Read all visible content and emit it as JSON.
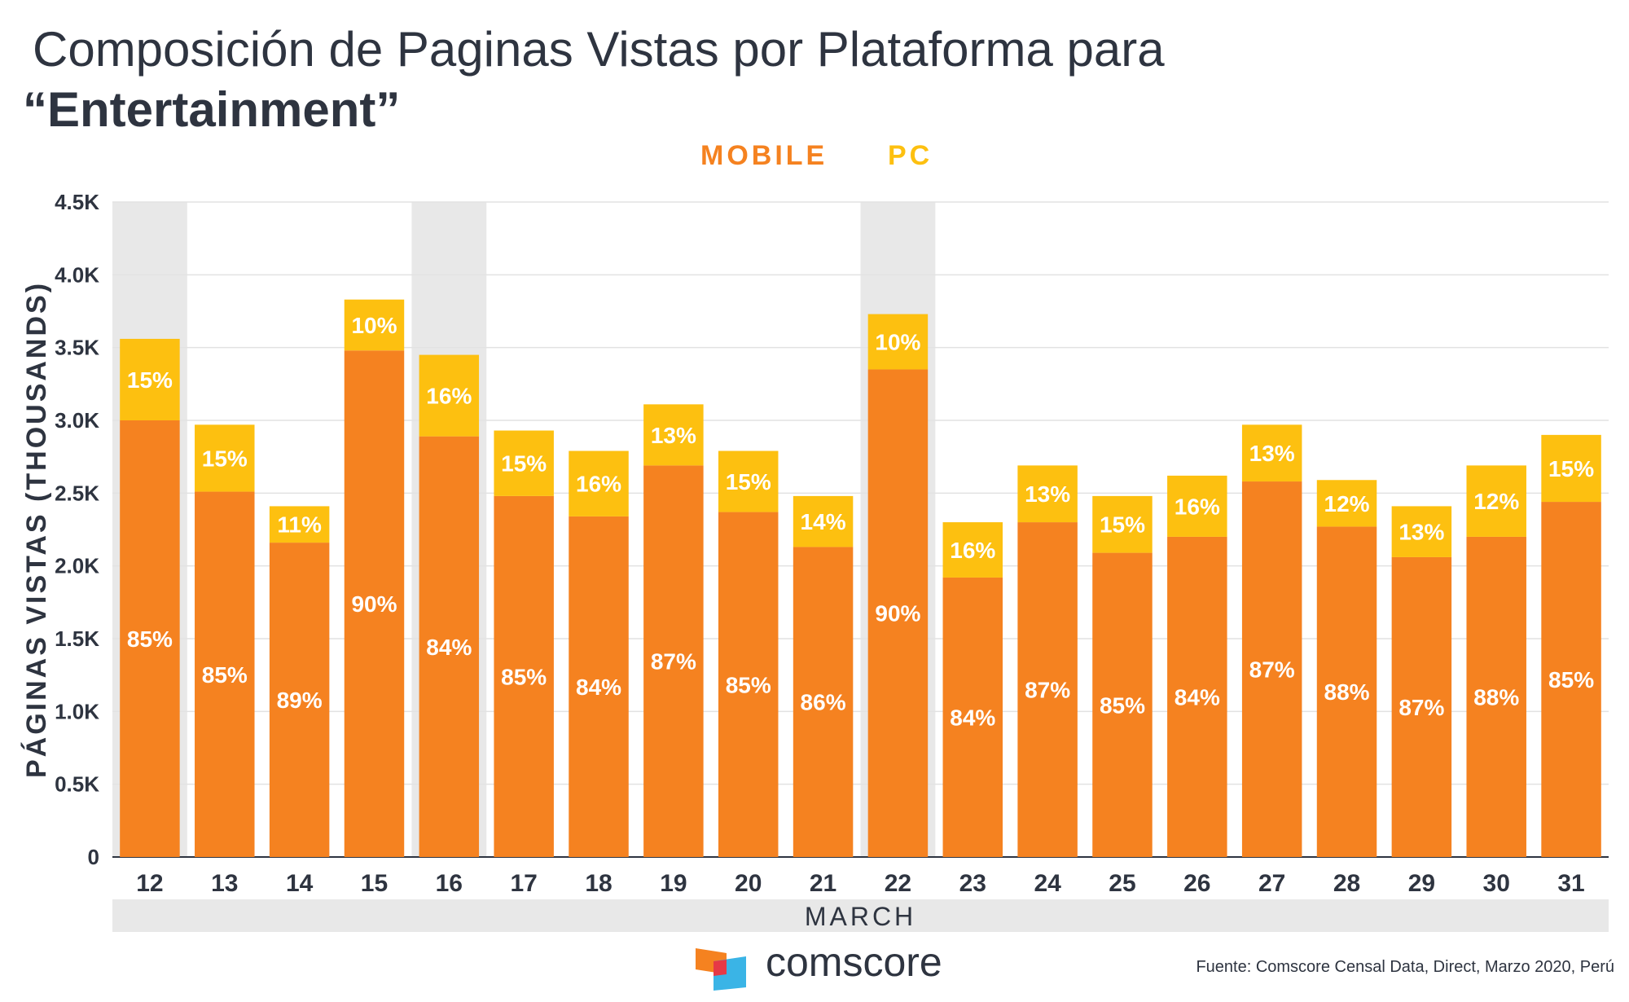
{
  "header": {
    "title_line1": "Composición de Paginas Vistas por Plataforma para",
    "title_line2": "“Entertainment”"
  },
  "legend": {
    "mobile": "MOBILE",
    "pc": "PC"
  },
  "colors": {
    "mobile": "#f58220",
    "pc": "#fdc010",
    "highlight": "#e8e8e8",
    "text": "#2e3440"
  },
  "chart_data": {
    "type": "bar",
    "stacked": true,
    "xlabel": "MARCH",
    "ylabel": "PÁGINAS VISTAS (THOUSANDS)",
    "ylim": [
      0,
      4.5
    ],
    "yticks": [
      0,
      0.5,
      1.0,
      1.5,
      2.0,
      2.5,
      3.0,
      3.5,
      4.0,
      4.5
    ],
    "ytick_labels": [
      "0",
      "0.5K",
      "1.0K",
      "1.5K",
      "2.0K",
      "2.5K",
      "3.0K",
      "3.5K",
      "4.0K",
      "4.5K"
    ],
    "categories": [
      "12",
      "13",
      "14",
      "15",
      "16",
      "17",
      "18",
      "19",
      "20",
      "21",
      "22",
      "23",
      "24",
      "25",
      "26",
      "27",
      "28",
      "29",
      "30",
      "31"
    ],
    "highlighted_categories": [
      "12",
      "16",
      "22"
    ],
    "grid": true,
    "legend_position": "top-center",
    "series": [
      {
        "name": "MOBILE",
        "values": [
          3.0,
          2.51,
          2.16,
          3.48,
          2.89,
          2.48,
          2.34,
          2.69,
          2.37,
          2.13,
          3.35,
          1.92,
          2.3,
          2.09,
          2.2,
          2.58,
          2.27,
          2.06,
          2.2,
          2.44
        ],
        "labels": [
          "85%",
          "85%",
          "89%",
          "90%",
          "84%",
          "85%",
          "84%",
          "87%",
          "85%",
          "86%",
          "90%",
          "84%",
          "87%",
          "85%",
          "84%",
          "87%",
          "88%",
          "87%",
          "88%",
          "85%"
        ]
      },
      {
        "name": "PC",
        "values": [
          0.56,
          0.46,
          0.25,
          0.35,
          0.56,
          0.45,
          0.45,
          0.42,
          0.42,
          0.35,
          0.38,
          0.38,
          0.39,
          0.39,
          0.42,
          0.39,
          0.32,
          0.35,
          0.49,
          0.46
        ],
        "labels": [
          "15%",
          "15%",
          "11%",
          "10%",
          "16%",
          "15%",
          "16%",
          "13%",
          "15%",
          "14%",
          "10%",
          "16%",
          "13%",
          "15%",
          "16%",
          "13%",
          "12%",
          "13%",
          "12%",
          "15%"
        ]
      }
    ]
  },
  "footer": {
    "brand": "comscore",
    "source": "Fuente: Comscore Censal Data, Direct, Marzo 2020, Perú"
  }
}
